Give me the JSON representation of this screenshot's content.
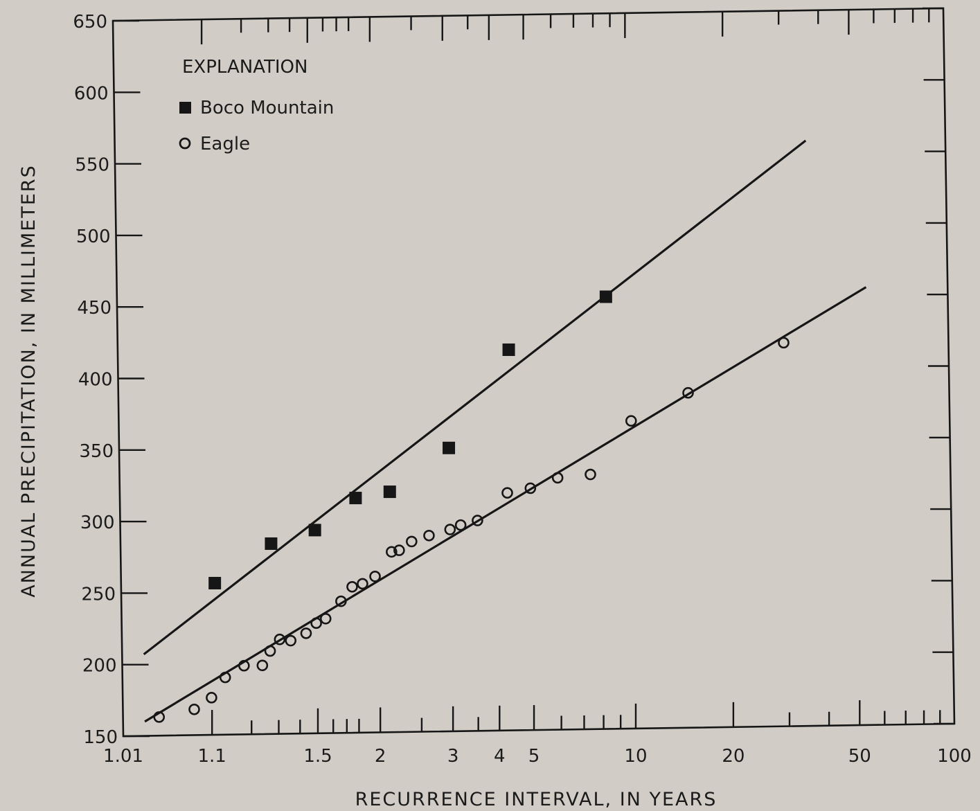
{
  "chart_data": {
    "type": "scatter",
    "title": "",
    "xlabel": "RECURRENCE INTERVAL, IN YEARS",
    "ylabel": "ANNUAL PRECIPITATION, IN MILLIMETERS",
    "xscale": "probability (Gumbel, reduced variate)",
    "ylim": [
      150,
      650
    ],
    "yticks": [
      150,
      200,
      250,
      300,
      350,
      400,
      450,
      500,
      550,
      600,
      650
    ],
    "ytick_labels": [
      "150",
      "200",
      "250",
      "300",
      "350",
      "400",
      "450",
      "500",
      "550",
      "600",
      "650"
    ],
    "xtick_labels": [
      "1.01",
      "1.1",
      "1.5",
      "2",
      "3",
      "4",
      "5",
      "10",
      "20",
      "50",
      "100"
    ],
    "xticks": [
      1.01,
      1.1,
      1.5,
      2,
      3,
      4,
      5,
      10,
      20,
      50,
      100
    ],
    "legend": {
      "title": "EXPLANATION",
      "placement": "top-left",
      "entries": [
        {
          "label": "Boco Mountain",
          "marker": "filled-square"
        },
        {
          "label": "Eagle",
          "marker": "open-circle"
        }
      ]
    },
    "series": [
      {
        "name": "Boco Mountain",
        "marker": "filled-square",
        "color": "#161616",
        "points": [
          {
            "x": 1.11,
            "y": 256
          },
          {
            "x": 1.28,
            "y": 283
          },
          {
            "x": 1.5,
            "y": 292
          },
          {
            "x": 1.8,
            "y": 314
          },
          {
            "x": 2.14,
            "y": 318
          },
          {
            "x": 3.0,
            "y": 348
          },
          {
            "x": 4.4,
            "y": 416
          },
          {
            "x": 8.5,
            "y": 452
          }
        ],
        "fit_line": [
          {
            "x": 1.02,
            "y": 207
          },
          {
            "x": 36,
            "y": 559
          }
        ]
      },
      {
        "name": "Eagle",
        "marker": "open-circle",
        "color": "#161616",
        "points": [
          {
            "x": 1.03,
            "y": 163
          },
          {
            "x": 1.07,
            "y": 168
          },
          {
            "x": 1.1,
            "y": 176
          },
          {
            "x": 1.13,
            "y": 190
          },
          {
            "x": 1.18,
            "y": 198
          },
          {
            "x": 1.24,
            "y": 198
          },
          {
            "x": 1.27,
            "y": 208
          },
          {
            "x": 1.31,
            "y": 216
          },
          {
            "x": 1.36,
            "y": 215
          },
          {
            "x": 1.44,
            "y": 220
          },
          {
            "x": 1.5,
            "y": 227
          },
          {
            "x": 1.56,
            "y": 230
          },
          {
            "x": 1.67,
            "y": 242
          },
          {
            "x": 1.76,
            "y": 252
          },
          {
            "x": 1.85,
            "y": 254
          },
          {
            "x": 1.97,
            "y": 259
          },
          {
            "x": 2.15,
            "y": 276
          },
          {
            "x": 2.24,
            "y": 277
          },
          {
            "x": 2.4,
            "y": 283
          },
          {
            "x": 2.65,
            "y": 287
          },
          {
            "x": 3.0,
            "y": 291
          },
          {
            "x": 3.2,
            "y": 294
          },
          {
            "x": 3.55,
            "y": 297
          },
          {
            "x": 4.3,
            "y": 316
          },
          {
            "x": 5.0,
            "y": 319
          },
          {
            "x": 6.0,
            "y": 326
          },
          {
            "x": 7.5,
            "y": 328
          },
          {
            "x": 10.0,
            "y": 365
          },
          {
            "x": 15.0,
            "y": 384
          },
          {
            "x": 30.0,
            "y": 418
          }
        ],
        "fit_line": [
          {
            "x": 1.02,
            "y": 160
          },
          {
            "x": 55,
            "y": 456
          }
        ]
      }
    ]
  }
}
